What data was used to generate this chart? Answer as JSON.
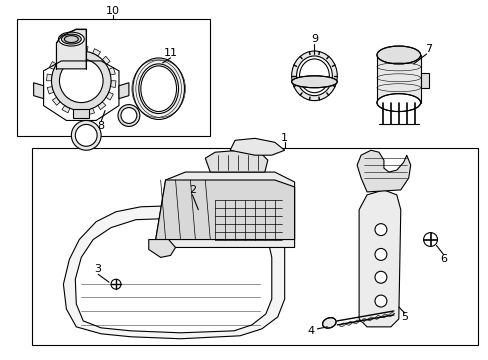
{
  "bg_color": "#ffffff",
  "line_color": "#000000",
  "lw": 0.8,
  "fig_w": 4.89,
  "fig_h": 3.6,
  "dpi": 100
}
